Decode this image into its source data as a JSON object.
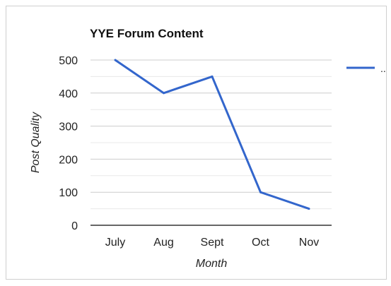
{
  "chart_data": {
    "type": "line",
    "title": "YYE Forum Content",
    "xlabel": "Month",
    "ylabel": "Post Quality",
    "categories": [
      "July",
      "Aug",
      "Sept",
      "Oct",
      "Nov"
    ],
    "series": [
      {
        "name": "..",
        "values": [
          500,
          400,
          450,
          100,
          50
        ]
      }
    ],
    "ylim": [
      0,
      500
    ],
    "yticks": [
      0,
      100,
      200,
      300,
      400,
      500
    ],
    "grid": true,
    "legend": "right",
    "colors": {
      "line": "#3366cc",
      "grid": "#cccccc",
      "axis": "#333333",
      "text": "#222222"
    }
  }
}
